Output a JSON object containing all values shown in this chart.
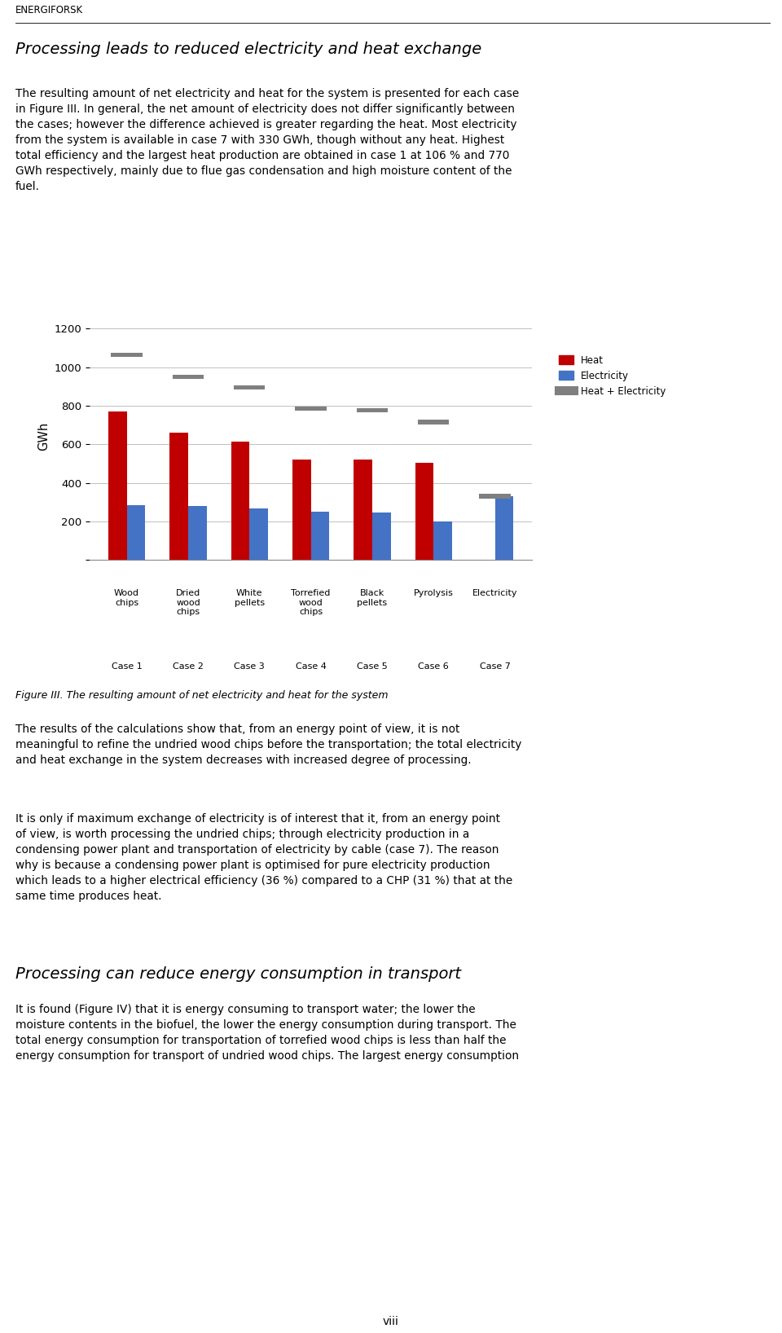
{
  "categories": [
    "Wood\nchips",
    "Dried\nwood\nchips",
    "White\npellets",
    "Torrefied\nwood\nchips",
    "Black\npellets",
    "Pyrolysis",
    "Electricity"
  ],
  "case_labels": [
    "Case 1",
    "Case 2",
    "Case 3",
    "Case 4",
    "Case 5",
    "Case 6",
    "Case 7"
  ],
  "heat": [
    770,
    660,
    615,
    520,
    520,
    505,
    0
  ],
  "electricity": [
    285,
    280,
    265,
    250,
    245,
    200,
    330
  ],
  "heat_plus_elec": [
    1065,
    950,
    895,
    785,
    775,
    715,
    330
  ],
  "heat_color": "#C00000",
  "electricity_color": "#4472C4",
  "heat_elec_color": "#7F7F7F",
  "ylabel": "GWh",
  "ylim": [
    0,
    1280
  ],
  "yticks": [
    0,
    200,
    400,
    600,
    800,
    1000,
    1200
  ],
  "legend_labels": [
    "Heat",
    "Electricity",
    "Heat + Electricity"
  ],
  "title_text": "Processing leads to reduced electricity and heat exchange",
  "figure_caption": "Figure III. The resulting amount of net electricity and heat for the system",
  "body_text_1": "The resulting amount of net electricity and heat for the system is presented for each case\nin Figure III. In general, the net amount of electricity does not differ significantly between\nthe cases; however the difference achieved is greater regarding the heat. Most electricity\nfrom the system is available in case 7 with 330 GWh, though without any heat. Highest\ntotal efficiency and the largest heat production are obtained in case 1 at 106 % and 770\nGWh respectively, mainly due to flue gas condensation and high moisture content of the\nfuel.",
  "body_text_2": "The results of the calculations show that, from an energy point of view, it is not\nmeaningful to refine the undried wood chips before the transportation; the total electricity\nand heat exchange in the system decreases with increased degree of processing.",
  "body_text_3": "It is only if maximum exchange of electricity is of interest that it, from an energy point\nof view, is worth processing the undried chips; through electricity production in a\ncondensing power plant and transportation of electricity by cable (case 7). The reason\nwhy is because a condensing power plant is optimised for pure electricity production\nwhich leads to a higher electrical efficiency (36 %) compared to a CHP (31 %) that at the\nsame time produces heat.",
  "section_title_2": "Processing can reduce energy consumption in transport",
  "body_text_4": "It is found (Figure IV) that it is energy consuming to transport water; the lower the\nmoisture contents in the biofuel, the lower the energy consumption during transport. The\ntotal energy consumption for transportation of torrefied wood chips is less than half the\nenergy consumption for transport of undried wood chips. The largest energy consumption",
  "page_number": "viii",
  "header_text": "ENERGIFORSK"
}
